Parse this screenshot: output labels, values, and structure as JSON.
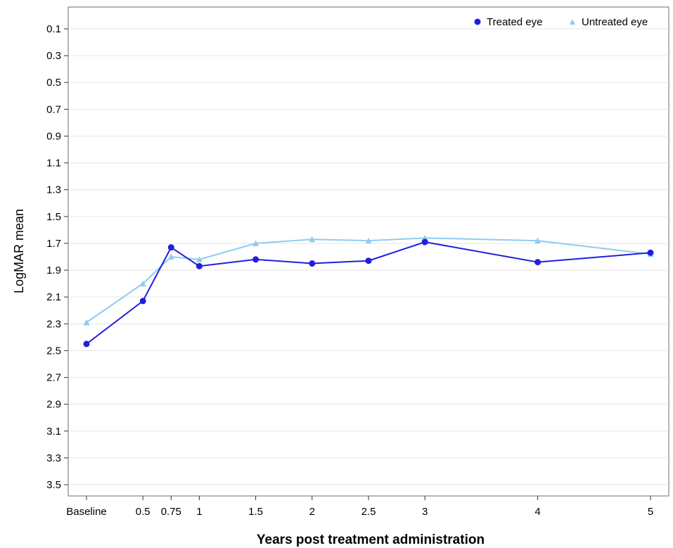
{
  "chart_data": {
    "type": "line",
    "xlabel": "Years post treatment administration",
    "ylabel": "LogMAR mean",
    "x": [
      0,
      0.5,
      0.75,
      1,
      1.5,
      2,
      2.5,
      3,
      4,
      5
    ],
    "x_tick_labels": [
      "Baseline",
      "0.5",
      "0.75",
      "1",
      "1.5",
      "2",
      "2.5",
      "3",
      "4",
      "5"
    ],
    "y_ticks": [
      "0.1",
      "0.3",
      "0.5",
      "0.7",
      "0.9",
      "1.1",
      "1.3",
      "1.5",
      "1.7",
      "1.9",
      "2.1",
      "2.3",
      "2.5",
      "2.7",
      "2.9",
      "3.1",
      "3.3",
      "3.5"
    ],
    "ylim": [
      0.0,
      3.58
    ],
    "y_inverted": true,
    "grid": "horizontal",
    "legend_position": "top-right",
    "series": [
      {
        "name": "Treated eye",
        "marker": "circle",
        "color": "#1f1fe0",
        "values": [
          2.45,
          2.13,
          1.73,
          1.87,
          1.82,
          1.85,
          1.83,
          1.69,
          1.84,
          1.77
        ]
      },
      {
        "name": "Untreated eye",
        "marker": "triangle",
        "color": "#8fcbf0",
        "values": [
          2.29,
          2.0,
          1.8,
          1.82,
          1.7,
          1.67,
          1.68,
          1.66,
          1.68,
          1.78
        ]
      }
    ]
  }
}
